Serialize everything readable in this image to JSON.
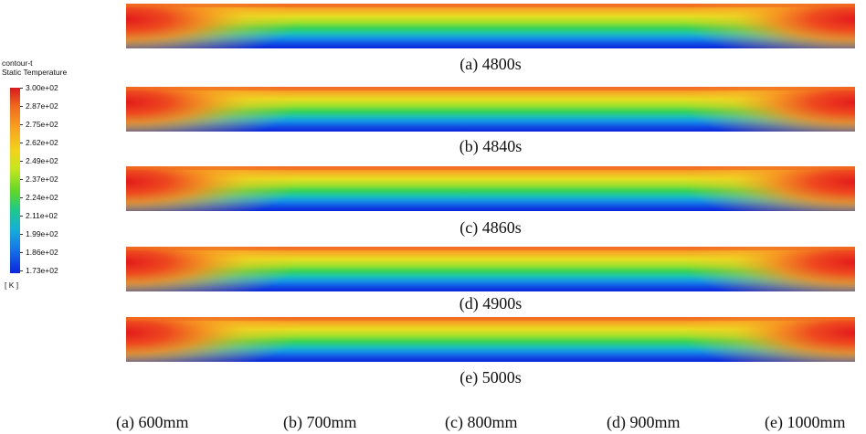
{
  "legend": {
    "title_line1": "contour-t",
    "title_line2": "Static Temperature",
    "ticks": [
      "3.00e+02",
      "2.87e+02",
      "2.75e+02",
      "2.62e+02",
      "2.49e+02",
      "2.37e+02",
      "2.24e+02",
      "2.11e+02",
      "1.99e+02",
      "1.86e+02",
      "1.73e+02"
    ],
    "unit": "[ K ]",
    "colors": [
      "#d7191c",
      "#f06a1f",
      "#f8a421",
      "#f2d41c",
      "#c4e61e",
      "#5fd72a",
      "#1ec98a",
      "#16b0d6",
      "#1676e8",
      "#0a25dc"
    ]
  },
  "panels": [
    {
      "label": "(a) 4800s"
    },
    {
      "label": "(b) 4840s"
    },
    {
      "label": "(c) 4860s"
    },
    {
      "label": "(d) 4900s"
    },
    {
      "label": "(e) 5000s"
    }
  ],
  "bottom_labels": [
    "(a) 600mm",
    "(b) 700mm",
    "(c) 800mm",
    "(d) 900mm",
    "(e) 1000mm"
  ]
}
